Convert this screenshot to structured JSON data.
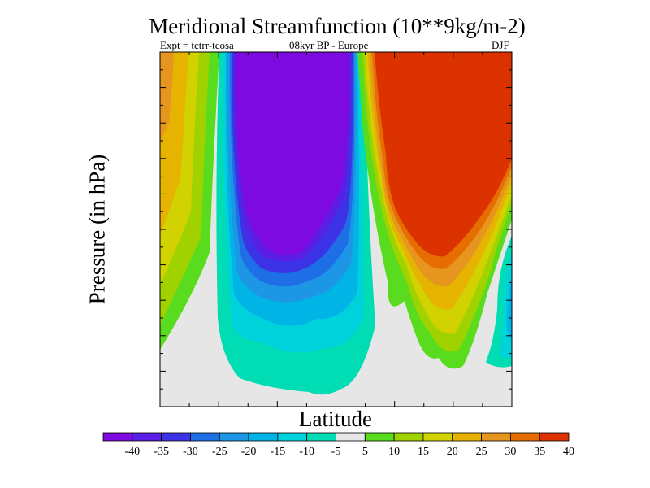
{
  "header": {
    "title": "Meridional Streamfunction (10**9kg/m-2)",
    "expt": "Expt = tctrr-tcosa",
    "period": "08kyr BP - Europe",
    "season": "DJF"
  },
  "chart_data": {
    "type": "heatmap",
    "title": "Meridional Streamfunction (10**9kg/m-2)",
    "subtitle": "Expt = tctrr-tcosa    08kyr BP - Europe    DJF",
    "xlabel": "Latitude",
    "ylabel": "Pressure (in hPa)",
    "x_tick_labels": [],
    "y_tick_labels": [],
    "colorbar": {
      "tick_labels": [
        "-40",
        "-35",
        "-30",
        "-25",
        "-20",
        "-15",
        "-10",
        "-5",
        "5",
        "10",
        "15",
        "20",
        "25",
        "30",
        "35",
        "40"
      ],
      "colors": [
        "#7d0ae0",
        "#5a1ee6",
        "#3c32e6",
        "#1e6ee6",
        "#1e96e6",
        "#00b4e6",
        "#00d2dc",
        "#00dcb4",
        "#e6e6e6",
        "#5adc1e",
        "#a0d200",
        "#d2d200",
        "#e6b400",
        "#e6961e",
        "#e66e00",
        "#dc3200"
      ]
    },
    "features": [
      {
        "region": "left edge, upper-mid troposphere",
        "sign": "positive",
        "peak": 25
      },
      {
        "region": "centre-left column, full depth",
        "sign": "negative",
        "peak": -40
      },
      {
        "region": "centre-right column, upper levels",
        "sign": "positive",
        "peak": 40
      },
      {
        "region": "right edge, lower levels",
        "sign": "negative",
        "peak": -15
      }
    ]
  }
}
